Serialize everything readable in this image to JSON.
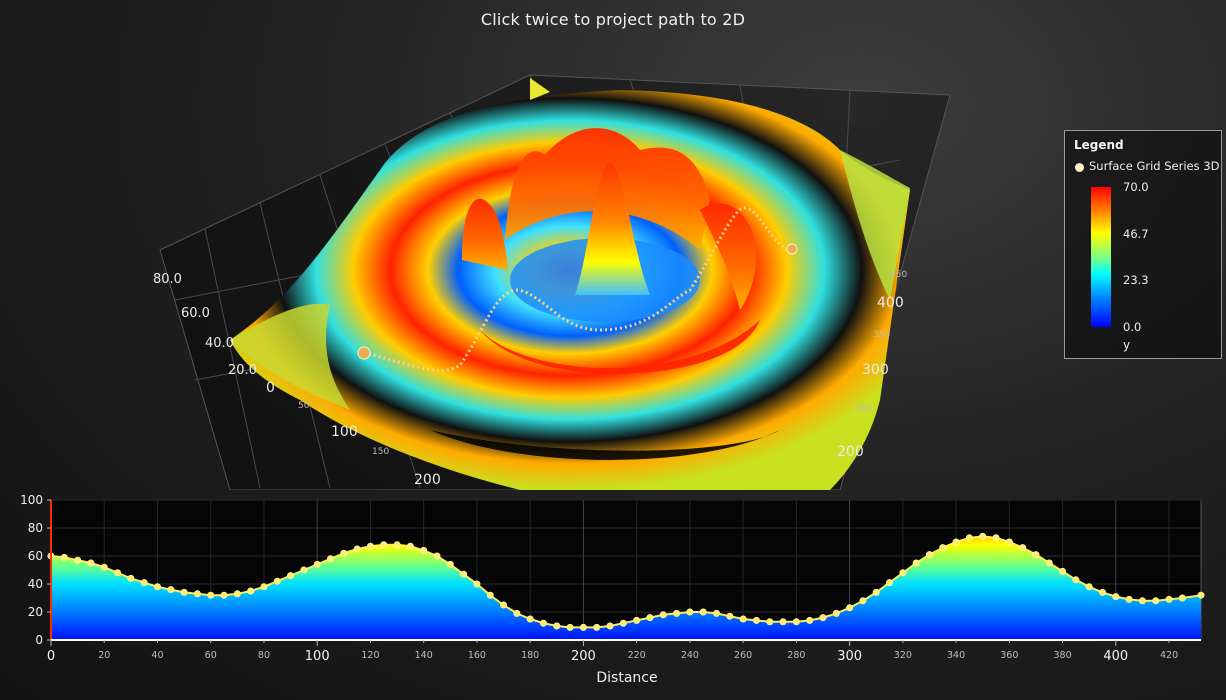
{
  "title": "Click twice to project path to 2D",
  "legend": {
    "title": "Legend",
    "series_name": "Surface Grid Series 3D",
    "ticks": [
      "70.0",
      "46.7",
      "23.3",
      "0.0"
    ],
    "unit": "y"
  },
  "chart_data": [
    {
      "type": "surface",
      "series_name": "Surface Grid Series 3D",
      "y_axis_ticks": [
        "80.0",
        "60.0",
        "40.0",
        "20.0"
      ],
      "x_axis_ticks": [
        "0",
        "50",
        "100",
        "150",
        "200"
      ],
      "z_axis_ticks": [
        "450",
        "400",
        "350",
        "300",
        "250",
        "200"
      ],
      "color_range": [
        0,
        70
      ]
    },
    {
      "type": "area",
      "xlabel": "Distance",
      "xlim": [
        0,
        432
      ],
      "ylim": [
        0,
        100
      ],
      "y_ticks": [
        0,
        20,
        40,
        60,
        80,
        100
      ],
      "x_ticks": [
        0,
        20,
        40,
        60,
        80,
        100,
        120,
        140,
        160,
        180,
        200,
        220,
        240,
        260,
        280,
        300,
        320,
        340,
        360,
        380,
        400,
        420
      ],
      "x_ticks_major": [
        0,
        100,
        200,
        300,
        400
      ],
      "x": [
        0,
        5,
        10,
        15,
        20,
        25,
        30,
        35,
        40,
        45,
        50,
        55,
        60,
        65,
        70,
        75,
        80,
        85,
        90,
        95,
        100,
        105,
        110,
        115,
        120,
        125,
        130,
        135,
        140,
        145,
        150,
        155,
        160,
        165,
        170,
        175,
        180,
        185,
        190,
        195,
        200,
        205,
        210,
        215,
        220,
        225,
        230,
        235,
        240,
        245,
        250,
        255,
        260,
        265,
        270,
        275,
        280,
        285,
        290,
        295,
        300,
        305,
        310,
        315,
        320,
        325,
        330,
        335,
        340,
        345,
        350,
        355,
        360,
        365,
        370,
        375,
        380,
        385,
        390,
        395,
        400,
        405,
        410,
        415,
        420,
        425,
        432
      ],
      "y": [
        60,
        59,
        57,
        55,
        52,
        48,
        44,
        41,
        38,
        36,
        34,
        33,
        32,
        32,
        33,
        35,
        38,
        42,
        46,
        50,
        54,
        58,
        62,
        65,
        67,
        68,
        68,
        67,
        64,
        60,
        54,
        47,
        40,
        32,
        25,
        19,
        15,
        12,
        10,
        9,
        9,
        9,
        10,
        12,
        14,
        16,
        18,
        19,
        20,
        20,
        19,
        17,
        15,
        14,
        13,
        13,
        13,
        14,
        16,
        19,
        23,
        28,
        34,
        41,
        48,
        55,
        61,
        66,
        70,
        73,
        74,
        73,
        70,
        66,
        61,
        55,
        49,
        43,
        38,
        34,
        31,
        29,
        28,
        28,
        29,
        30,
        32
      ]
    }
  ]
}
